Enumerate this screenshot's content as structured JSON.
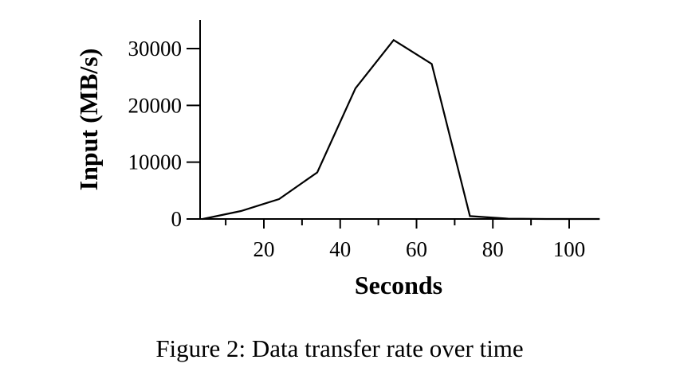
{
  "chart_data": {
    "type": "line",
    "xlabel": "Seconds",
    "ylabel": "Input (MB/s)",
    "xlim": [
      0,
      108
    ],
    "ylim": [
      0,
      35000
    ],
    "xticks_major": [
      20,
      40,
      60,
      80,
      100
    ],
    "xticks_minor": [
      10,
      30,
      50,
      70,
      90
    ],
    "yticks": [
      0,
      10000,
      20000,
      30000
    ],
    "grid": false,
    "series": [
      {
        "x": [
          4,
          14,
          24,
          34,
          44,
          54,
          64,
          74,
          84,
          94,
          104,
          108
        ],
        "y": [
          0,
          1400,
          3500,
          8200,
          23000,
          31500,
          27300,
          500,
          50,
          0,
          0,
          0
        ]
      }
    ],
    "caption": "Figure 2: Data transfer rate over time"
  },
  "colors": {
    "line": "#000000",
    "axis": "#000000"
  }
}
